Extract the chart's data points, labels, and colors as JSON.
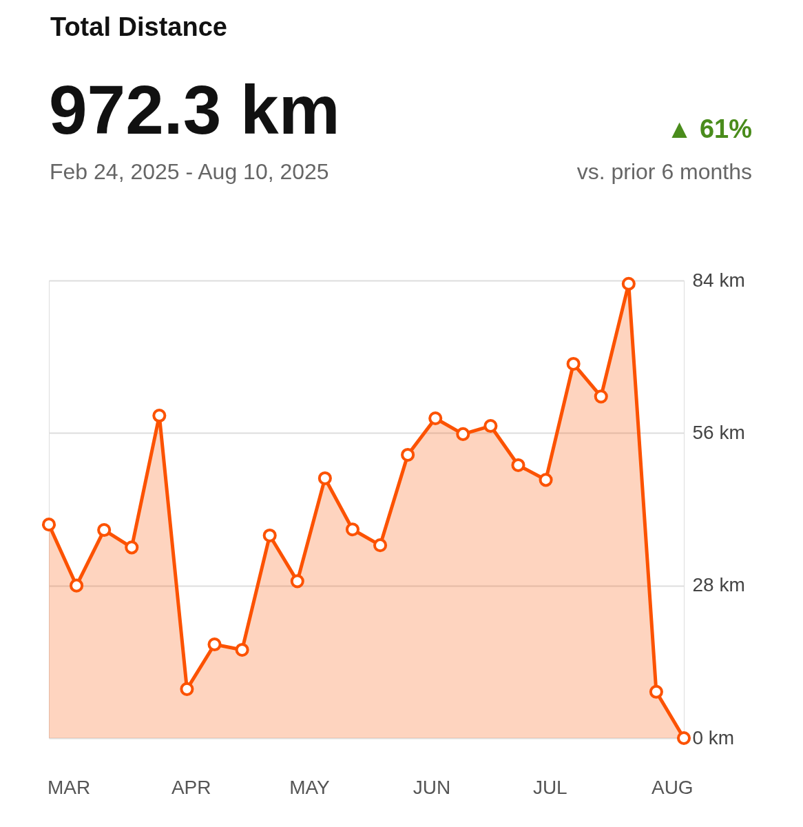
{
  "chart_data": {
    "type": "area",
    "title": "Total Distance",
    "subtitle": "Feb 24, 2025 - Aug 10, 2025",
    "annotations": [
      "972.3 km",
      "▲ 61%",
      "vs. prior 6 months"
    ],
    "x": [
      "2025-02-24",
      "2025-03-03",
      "2025-03-10",
      "2025-03-17",
      "2025-03-24",
      "2025-03-31",
      "2025-04-07",
      "2025-04-14",
      "2025-04-21",
      "2025-04-28",
      "2025-05-05",
      "2025-05-12",
      "2025-05-19",
      "2025-05-26",
      "2025-06-02",
      "2025-06-09",
      "2025-06-16",
      "2025-06-23",
      "2025-06-30",
      "2025-07-07",
      "2025-07-14",
      "2025-07-21",
      "2025-07-28",
      "2025-08-04"
    ],
    "series": [
      {
        "color": "#fc5200",
        "values": [
          39.2,
          28,
          38.2,
          35,
          59.2,
          9,
          17.2,
          16.2,
          37.2,
          28.8,
          47.7,
          38.3,
          35.4,
          52,
          58.7,
          55.8,
          57.3,
          50.1,
          47.4,
          68.7,
          62.7,
          83.4,
          8.5,
          0
        ]
      }
    ],
    "xlim": [
      "2025-02-24",
      "2025-08-04"
    ],
    "xticks": [
      {
        "value": "2025-03-01",
        "label": "MAR"
      },
      {
        "value": "2025-04-01",
        "label": "APR"
      },
      {
        "value": "2025-05-01",
        "label": "MAY"
      },
      {
        "value": "2025-06-01",
        "label": "JUN"
      },
      {
        "value": "2025-07-01",
        "label": "JUL"
      },
      {
        "value": "2025-08-01",
        "label": "AUG"
      }
    ],
    "ylim": [
      0,
      84
    ],
    "yticks": [
      {
        "value": 0,
        "label": "0 km"
      },
      {
        "value": 28,
        "label": "28 km"
      },
      {
        "value": 56,
        "label": "56 km"
      },
      {
        "value": 84,
        "label": "84 km"
      }
    ],
    "grid": "y",
    "marker": "circle"
  }
}
